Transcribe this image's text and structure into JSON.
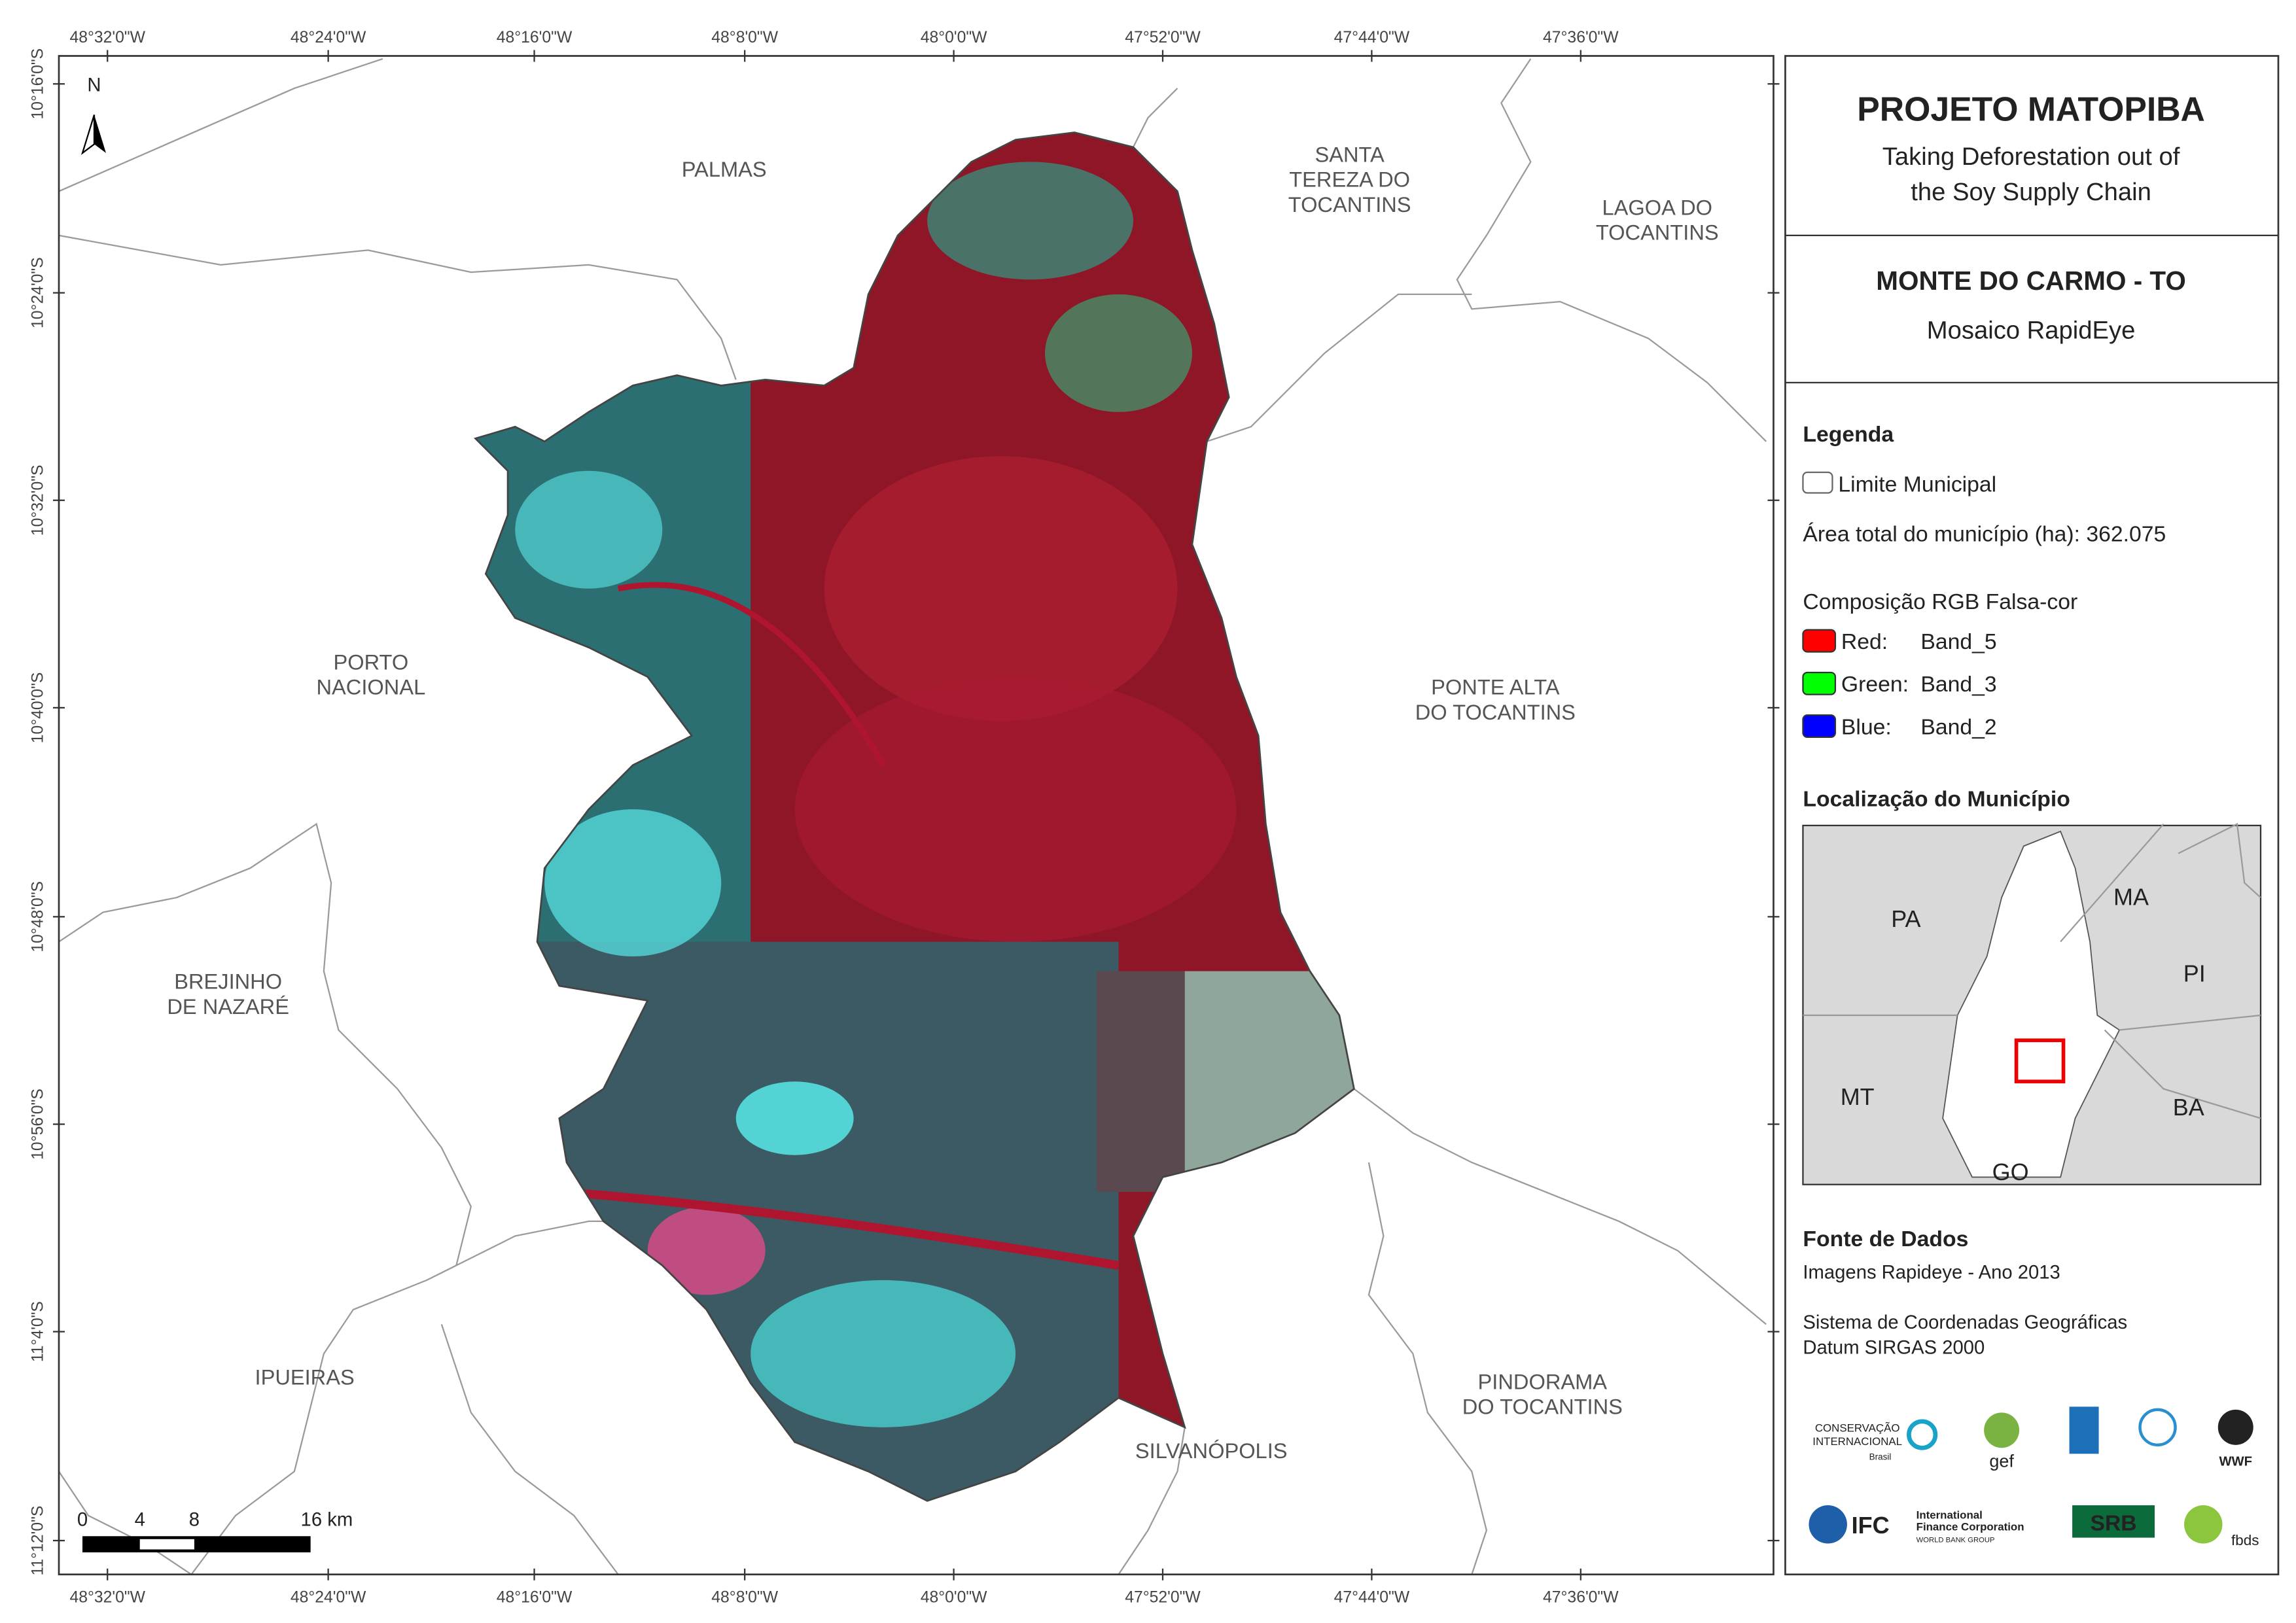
{
  "map": {
    "north": "N",
    "lon_labels": [
      "48°32'0\"W",
      "48°24'0\"W",
      "48°16'0\"W",
      "48°8'0\"W",
      "48°0'0\"W",
      "47°52'0\"W",
      "47°44'0\"W",
      "47°36'0\"W"
    ],
    "lat_labels": [
      "10°16'0\"S",
      "10°24'0\"S",
      "10°32'0\"S",
      "10°40'0\"S",
      "10°48'0\"S",
      "10°56'0\"S",
      "11°4'0\"S",
      "11°12'0\"S"
    ],
    "places": [
      {
        "lines": [
          "PALMAS"
        ]
      },
      {
        "lines": [
          "SANTA",
          "TEREZA DO",
          "TOCANTINS"
        ]
      },
      {
        "lines": [
          "LAGOA DO",
          "TOCANTINS"
        ]
      },
      {
        "lines": [
          "PORTO",
          "NACIONAL"
        ]
      },
      {
        "lines": [
          "PONTE ALTA",
          "DO TOCANTINS"
        ]
      },
      {
        "lines": [
          "BREJINHO",
          "DE NAZARÉ"
        ]
      },
      {
        "lines": [
          "IPUEIRAS"
        ]
      },
      {
        "lines": [
          "SILVANÓPOLIS"
        ]
      },
      {
        "lines": [
          "PINDORAMA",
          "DO TOCANTINS"
        ]
      }
    ],
    "scale_labels": [
      "0",
      "4",
      "8",
      "16 km"
    ]
  },
  "panel": {
    "title": "PROJETO MATOPIBA",
    "subtitle": [
      "Taking Deforestation out of",
      "the Soy Supply Chain"
    ],
    "municipality": "MONTE DO CARMO - TO",
    "product": "Mosaico RapidEye",
    "legend_title": "Legenda",
    "boundary": "Limite Municipal",
    "area": "Área total do município (ha): 362.075",
    "rgb_title": "Composição RGB Falsa-cor",
    "bands": [
      {
        "channel": "Red:",
        "band": "Band_5",
        "color": "#ff0000"
      },
      {
        "channel": "Green:",
        "band": "Band_3",
        "color": "#00ff00"
      },
      {
        "channel": "Blue:",
        "band": "Band_2",
        "color": "#0000ff"
      }
    ],
    "location_title": "Localização do Município",
    "states": [
      "PA",
      "MA",
      "PI",
      "MT",
      "BA",
      "GO"
    ],
    "source_title": "Fonte de Dados",
    "source": "Imagens Rapideye - Ano 2013",
    "crs": [
      "Sistema de Coordenadas Geográficas",
      "Datum SIRGAS 2000"
    ],
    "logos": [
      "CONSERVAÇÃO",
      "INTERNACIONAL",
      "Brasil",
      "gef",
      "WWF",
      "IFC",
      "International",
      "Finance Corporation",
      "WORLD BANK GROUP",
      "SRB",
      "fbds"
    ]
  }
}
